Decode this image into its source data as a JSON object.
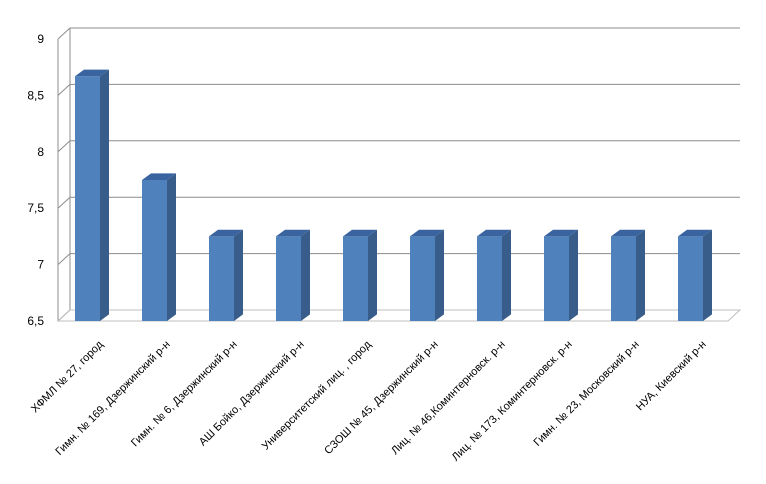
{
  "chart_data": {
    "type": "bar",
    "style": "3d-column",
    "title": "",
    "xlabel": "",
    "ylabel": "",
    "categories": [
      "ХФМЛ № 27, город",
      "Гимн. № 169, Дзержинский р-н",
      "Гимн. № 6, Дзержинский р-н",
      "АШ Бойко, Дзержинский р-н",
      "Университетский лиц. , город",
      "СЗОШ № 45, Дзержинский р-н",
      "Лиц. № 46,Коминтерновск. р-н",
      "Лиц. № 173, Коминтерновск. р-н",
      "Гимн. № 23, Московский р-н",
      "НУА, Киевский р-н"
    ],
    "values": [
      8.67,
      7.75,
      7.25,
      7.25,
      7.25,
      7.25,
      7.25,
      7.25,
      7.25,
      7.25
    ],
    "ylim": [
      6.5,
      9
    ],
    "yticks": [
      "6,5",
      "7",
      "7,5",
      "8",
      "8,5",
      "9"
    ],
    "grid": true,
    "legend": "none",
    "colors": {
      "bar_front": "#4f81bd",
      "bar_side": "#385d8a",
      "bar_top": "#3a64a0",
      "grid": "#8c8c8c",
      "floor": "#bfbfbf"
    }
  }
}
